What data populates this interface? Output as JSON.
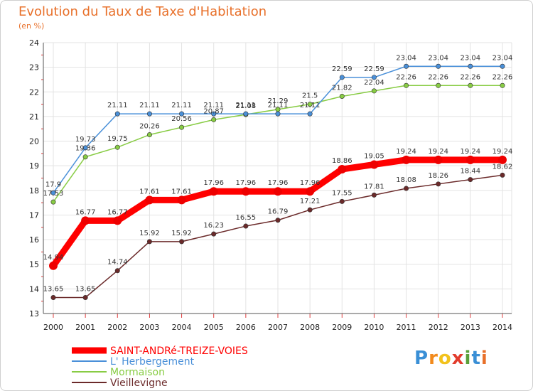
{
  "header": {
    "title": "Evolution du Taux de Taxe d'Habitation",
    "subtitle": "(en %)"
  },
  "logo": {
    "text": "Proxiti",
    "letters": [
      "P",
      "r",
      "o",
      "x",
      "i",
      "t",
      "i"
    ],
    "colors": [
      "#3a8fd6",
      "#f28a1c",
      "#f2c21c",
      "#e23c2c",
      "#5aa03a",
      "#3a8fd6",
      "#e8702a"
    ]
  },
  "chart_data": {
    "type": "line",
    "title": "Evolution du Taux de Taxe d'Habitation",
    "ylabel": "(en %)",
    "xlabel": "",
    "x": [
      "2000",
      "2001",
      "2002",
      "2003",
      "2004",
      "2005",
      "2006",
      "2007",
      "2008",
      "2009",
      "2010",
      "2011",
      "2012",
      "2013",
      "2014"
    ],
    "ylim": [
      13,
      24
    ],
    "yticks": [
      "13",
      "14",
      "15",
      "16",
      "17",
      "18",
      "19",
      "20",
      "21",
      "22",
      "23",
      "24"
    ],
    "legend_position": "bottom-left",
    "series": [
      {
        "name": "SAINT-ANDRé-TREIZE-VOIES",
        "color": "#ff0000",
        "values": [
          14.94,
          16.77,
          16.77,
          17.61,
          17.61,
          17.96,
          17.96,
          17.96,
          17.96,
          18.86,
          19.05,
          19.24,
          19.24,
          19.24,
          19.24
        ],
        "labels": [
          "14.94",
          "16.77",
          "16.77",
          "17.61",
          "17.61",
          "17.96",
          "17.96",
          "17.96",
          "17.96",
          "18.86",
          "19.05",
          "19.24",
          "19.24",
          "19.24",
          "19.24"
        ]
      },
      {
        "name": "L' Herbergement",
        "color": "#4a90d9",
        "values": [
          17.9,
          19.73,
          21.11,
          21.11,
          21.11,
          21.11,
          21.11,
          21.11,
          21.11,
          22.59,
          22.59,
          23.04,
          23.04,
          23.04,
          23.04
        ],
        "labels": [
          "17.9",
          "19.73",
          "21.11",
          "21.11",
          "21.11",
          "21.11",
          "21.11",
          "21.11",
          "21.11",
          "22.59",
          "22.59",
          "23.04",
          "23.04",
          "23.04",
          "23.04"
        ]
      },
      {
        "name": "Mormaison",
        "color": "#88cc44",
        "values": [
          17.53,
          19.36,
          19.75,
          20.26,
          20.56,
          20.87,
          21.08,
          21.29,
          21.5,
          21.82,
          22.04,
          22.26,
          22.26,
          22.26,
          22.26
        ],
        "labels": [
          "17.53",
          "19.36",
          "19.75",
          "20.26",
          "20.56",
          "20.87",
          "21.08",
          "21.29",
          "21.5",
          "21.82",
          "22.04",
          "22.26",
          "22.26",
          "22.26",
          "22.26"
        ]
      },
      {
        "name": "Vieillevigne",
        "color": "#6b2a2a",
        "values": [
          13.65,
          13.65,
          14.74,
          15.92,
          15.92,
          16.23,
          16.55,
          16.79,
          17.21,
          17.55,
          17.81,
          18.08,
          18.26,
          18.44,
          18.62
        ],
        "labels": [
          "13.65",
          "13.65",
          "14.74",
          "15.92",
          "15.92",
          "16.23",
          "16.55",
          "16.79",
          "17.21",
          "17.55",
          "17.81",
          "18.08",
          "18.26",
          "18.44",
          "18.62"
        ]
      }
    ]
  }
}
